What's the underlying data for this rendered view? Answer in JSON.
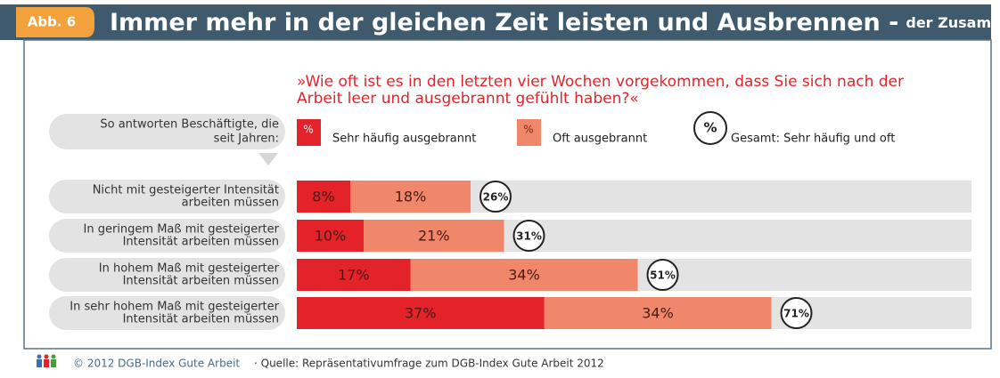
{
  "chart_data": {
    "type": "stacked-bar-horizontal",
    "badge": "Abb. 6",
    "title": "Immer mehr in der gleichen Zeit leisten und Ausbrennen -",
    "title_suffix": "der Zusammenhang",
    "question": [
      "»Wie oft ist es in den letzten vier Wochen vorgekommen, dass Sie sich nach der",
      "Arbeit leer und ausgebrannt gefühlt haben?«"
    ],
    "row_header": [
      "So antworten Beschäftigte, die",
      "seit Jahren:"
    ],
    "categories": [
      [
        "Nicht mit gesteigerter Intensität",
        "arbeiten müssen"
      ],
      [
        "In geringem Maß mit gesteigerter",
        "Intensität arbeiten müssen"
      ],
      [
        "In hohem Maß mit gesteigerter",
        "Intensität arbeiten müssen"
      ],
      [
        "In sehr hohem Maß mit gesteigerter",
        "Intensität arbeiten müssen"
      ]
    ],
    "legend_symbol": "%",
    "series": [
      {
        "name": "Sehr häufig ausgebrannt",
        "color": "#e3222a",
        "values": [
          8,
          10,
          17,
          37
        ],
        "value_labels": [
          "8%",
          "10%",
          "17%",
          "37%"
        ]
      },
      {
        "name": "Oft ausgebrannt",
        "color": "#f1876a",
        "values": [
          18,
          21,
          34,
          34
        ],
        "value_labels": [
          "18%",
          "21%",
          "34%",
          "34%"
        ]
      }
    ],
    "totals_name": "Gesamt: Sehr häufig und oft",
    "totals": [
      26,
      31,
      51,
      71
    ],
    "totals_labels": [
      "26%",
      "31%",
      "51%",
      "71%"
    ],
    "xlim": [
      0,
      100
    ],
    "footer": "© 2012 DGB-Index Gute Arbeit",
    "source": "· Quelle: Repräsentativumfrage zum DGB-Index Gute Arbeit 2012"
  }
}
